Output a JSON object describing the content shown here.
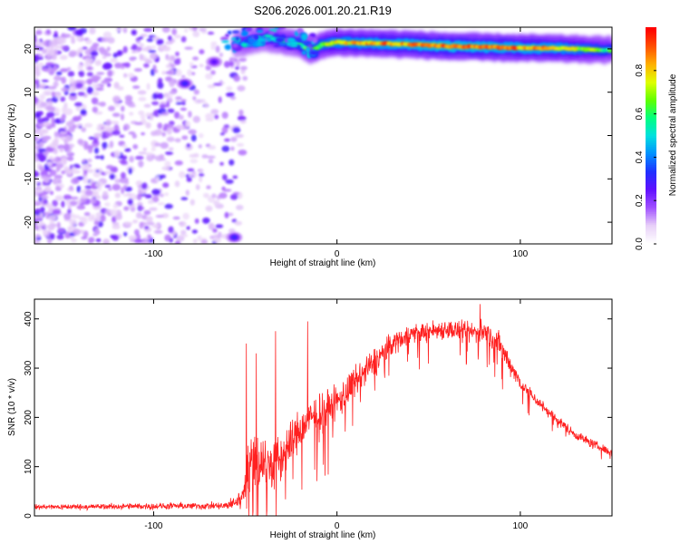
{
  "chart_data": [
    {
      "type": "heatmap",
      "title": "S206.2026.001.20.21.R19",
      "xlabel": "Height of straight line (km)",
      "ylabel": "Frequency (Hz)",
      "xlim": [
        -165,
        150
      ],
      "ylim": [
        -25,
        25
      ],
      "xticks": [
        -100,
        0,
        100
      ],
      "yticks": [
        -20,
        -10,
        0,
        10,
        20
      ],
      "colorbar": {
        "label": "Normalized spectral amplitude",
        "range": [
          0.0,
          1.0
        ],
        "ticks": [
          0.0,
          0.2,
          0.4,
          0.6,
          0.8
        ],
        "colors": [
          "#ffffff",
          "#e8d0f8",
          "#a050ff",
          "#6010ff",
          "#2030ff",
          "#0090ff",
          "#00e0e0",
          "#00ff80",
          "#60ff00",
          "#e0ff00",
          "#ffb000",
          "#ff5000",
          "#ff0000"
        ]
      },
      "ridge": {
        "description_values": "peak frequency vs height",
        "x": [
          -55,
          -40,
          -30,
          -20,
          -14,
          -8,
          0,
          20,
          40,
          60,
          80,
          100,
          120,
          150
        ],
        "y": [
          21,
          22.5,
          22,
          21,
          19.5,
          21,
          21.5,
          21.3,
          21,
          20.6,
          20.4,
          20.2,
          20.1,
          19.7
        ],
        "amp": [
          0.35,
          0.45,
          0.55,
          0.55,
          0.65,
          0.7,
          0.8,
          0.85,
          0.9,
          0.95,
          0.92,
          0.88,
          0.85,
          0.6
        ]
      },
      "noise_region_x": [
        -165,
        -55
      ],
      "blobs": [
        {
          "x": -83,
          "y": 12,
          "amp": 0.3
        },
        {
          "x": -67,
          "y": 17,
          "amp": 0.25
        },
        {
          "x": -56,
          "y": -23.5,
          "amp": 0.3
        }
      ]
    },
    {
      "type": "line",
      "title": "",
      "xlabel": "Height of straight line (km)",
      "ylabel": "SNR (10 * v/v)",
      "xlim": [
        -165,
        150
      ],
      "ylim": [
        0,
        440
      ],
      "xticks": [
        -100,
        0,
        100
      ],
      "yticks": [
        0,
        100,
        200,
        300,
        400
      ],
      "color": "#ff2020",
      "envelope": {
        "x": [
          -165,
          -80,
          -60,
          -52,
          -48,
          -45,
          -40,
          -35,
          -30,
          -25,
          -20,
          -15,
          -10,
          -5,
          0,
          10,
          20,
          30,
          40,
          50,
          60,
          70,
          80,
          88,
          95,
          100,
          110,
          120,
          130,
          140,
          150
        ],
        "mean": [
          18,
          20,
          20,
          35,
          95,
          120,
          110,
          100,
          120,
          150,
          175,
          195,
          210,
          220,
          230,
          270,
          310,
          350,
          370,
          375,
          380,
          372,
          375,
          350,
          305,
          270,
          230,
          195,
          165,
          145,
          128
        ],
        "amp": [
          8,
          10,
          12,
          30,
          90,
          100,
          90,
          80,
          80,
          70,
          65,
          55,
          55,
          55,
          55,
          50,
          45,
          35,
          30,
          30,
          30,
          32,
          35,
          40,
          30,
          22,
          18,
          15,
          14,
          14,
          12
        ]
      },
      "spikes": [
        {
          "x": -49.5,
          "y": 350
        },
        {
          "x": -44.0,
          "y": 330
        },
        {
          "x": -33.5,
          "y": 375
        },
        {
          "x": -16.0,
          "y": 395
        },
        {
          "x": 78.0,
          "y": 430
        }
      ]
    }
  ]
}
